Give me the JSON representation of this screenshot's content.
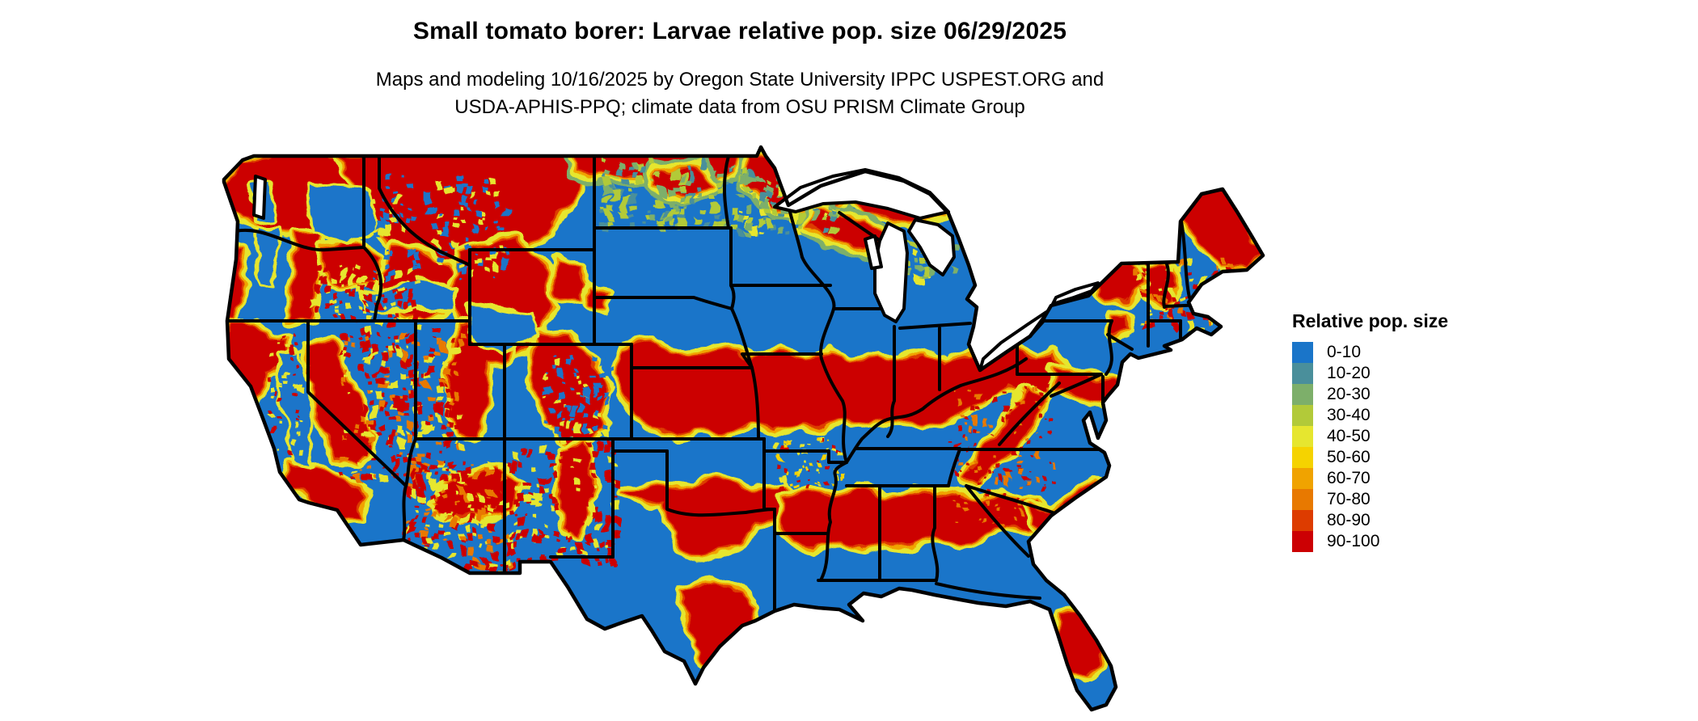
{
  "header": {
    "title": "Small tomato borer: Larvae relative pop. size 06/29/2025",
    "subtitle_line1": "Maps and modeling 10/16/2025 by Oregon State University IPPC USPEST.ORG and",
    "subtitle_line2": "USDA-APHIS-PPQ; climate data from OSU PRISM Climate Group"
  },
  "legend": {
    "title": "Relative pop. size",
    "items": [
      {
        "label": "0-10",
        "color": "#1A75C9"
      },
      {
        "label": "10-20",
        "color": "#4A8F9B"
      },
      {
        "label": "20-30",
        "color": "#7DAF6A"
      },
      {
        "label": "30-40",
        "color": "#B2CA39"
      },
      {
        "label": "40-50",
        "color": "#E6E62F"
      },
      {
        "label": "50-60",
        "color": "#F5D300"
      },
      {
        "label": "60-70",
        "color": "#F0A300"
      },
      {
        "label": "70-80",
        "color": "#E87900"
      },
      {
        "label": "80-90",
        "color": "#DD3C00"
      },
      {
        "label": "90-100",
        "color": "#CC0003"
      }
    ]
  },
  "map": {
    "region": "Contiguous United States",
    "border_color": "#000000",
    "water_color": "#FFFFFF",
    "background_color": "#FFFFFF"
  }
}
